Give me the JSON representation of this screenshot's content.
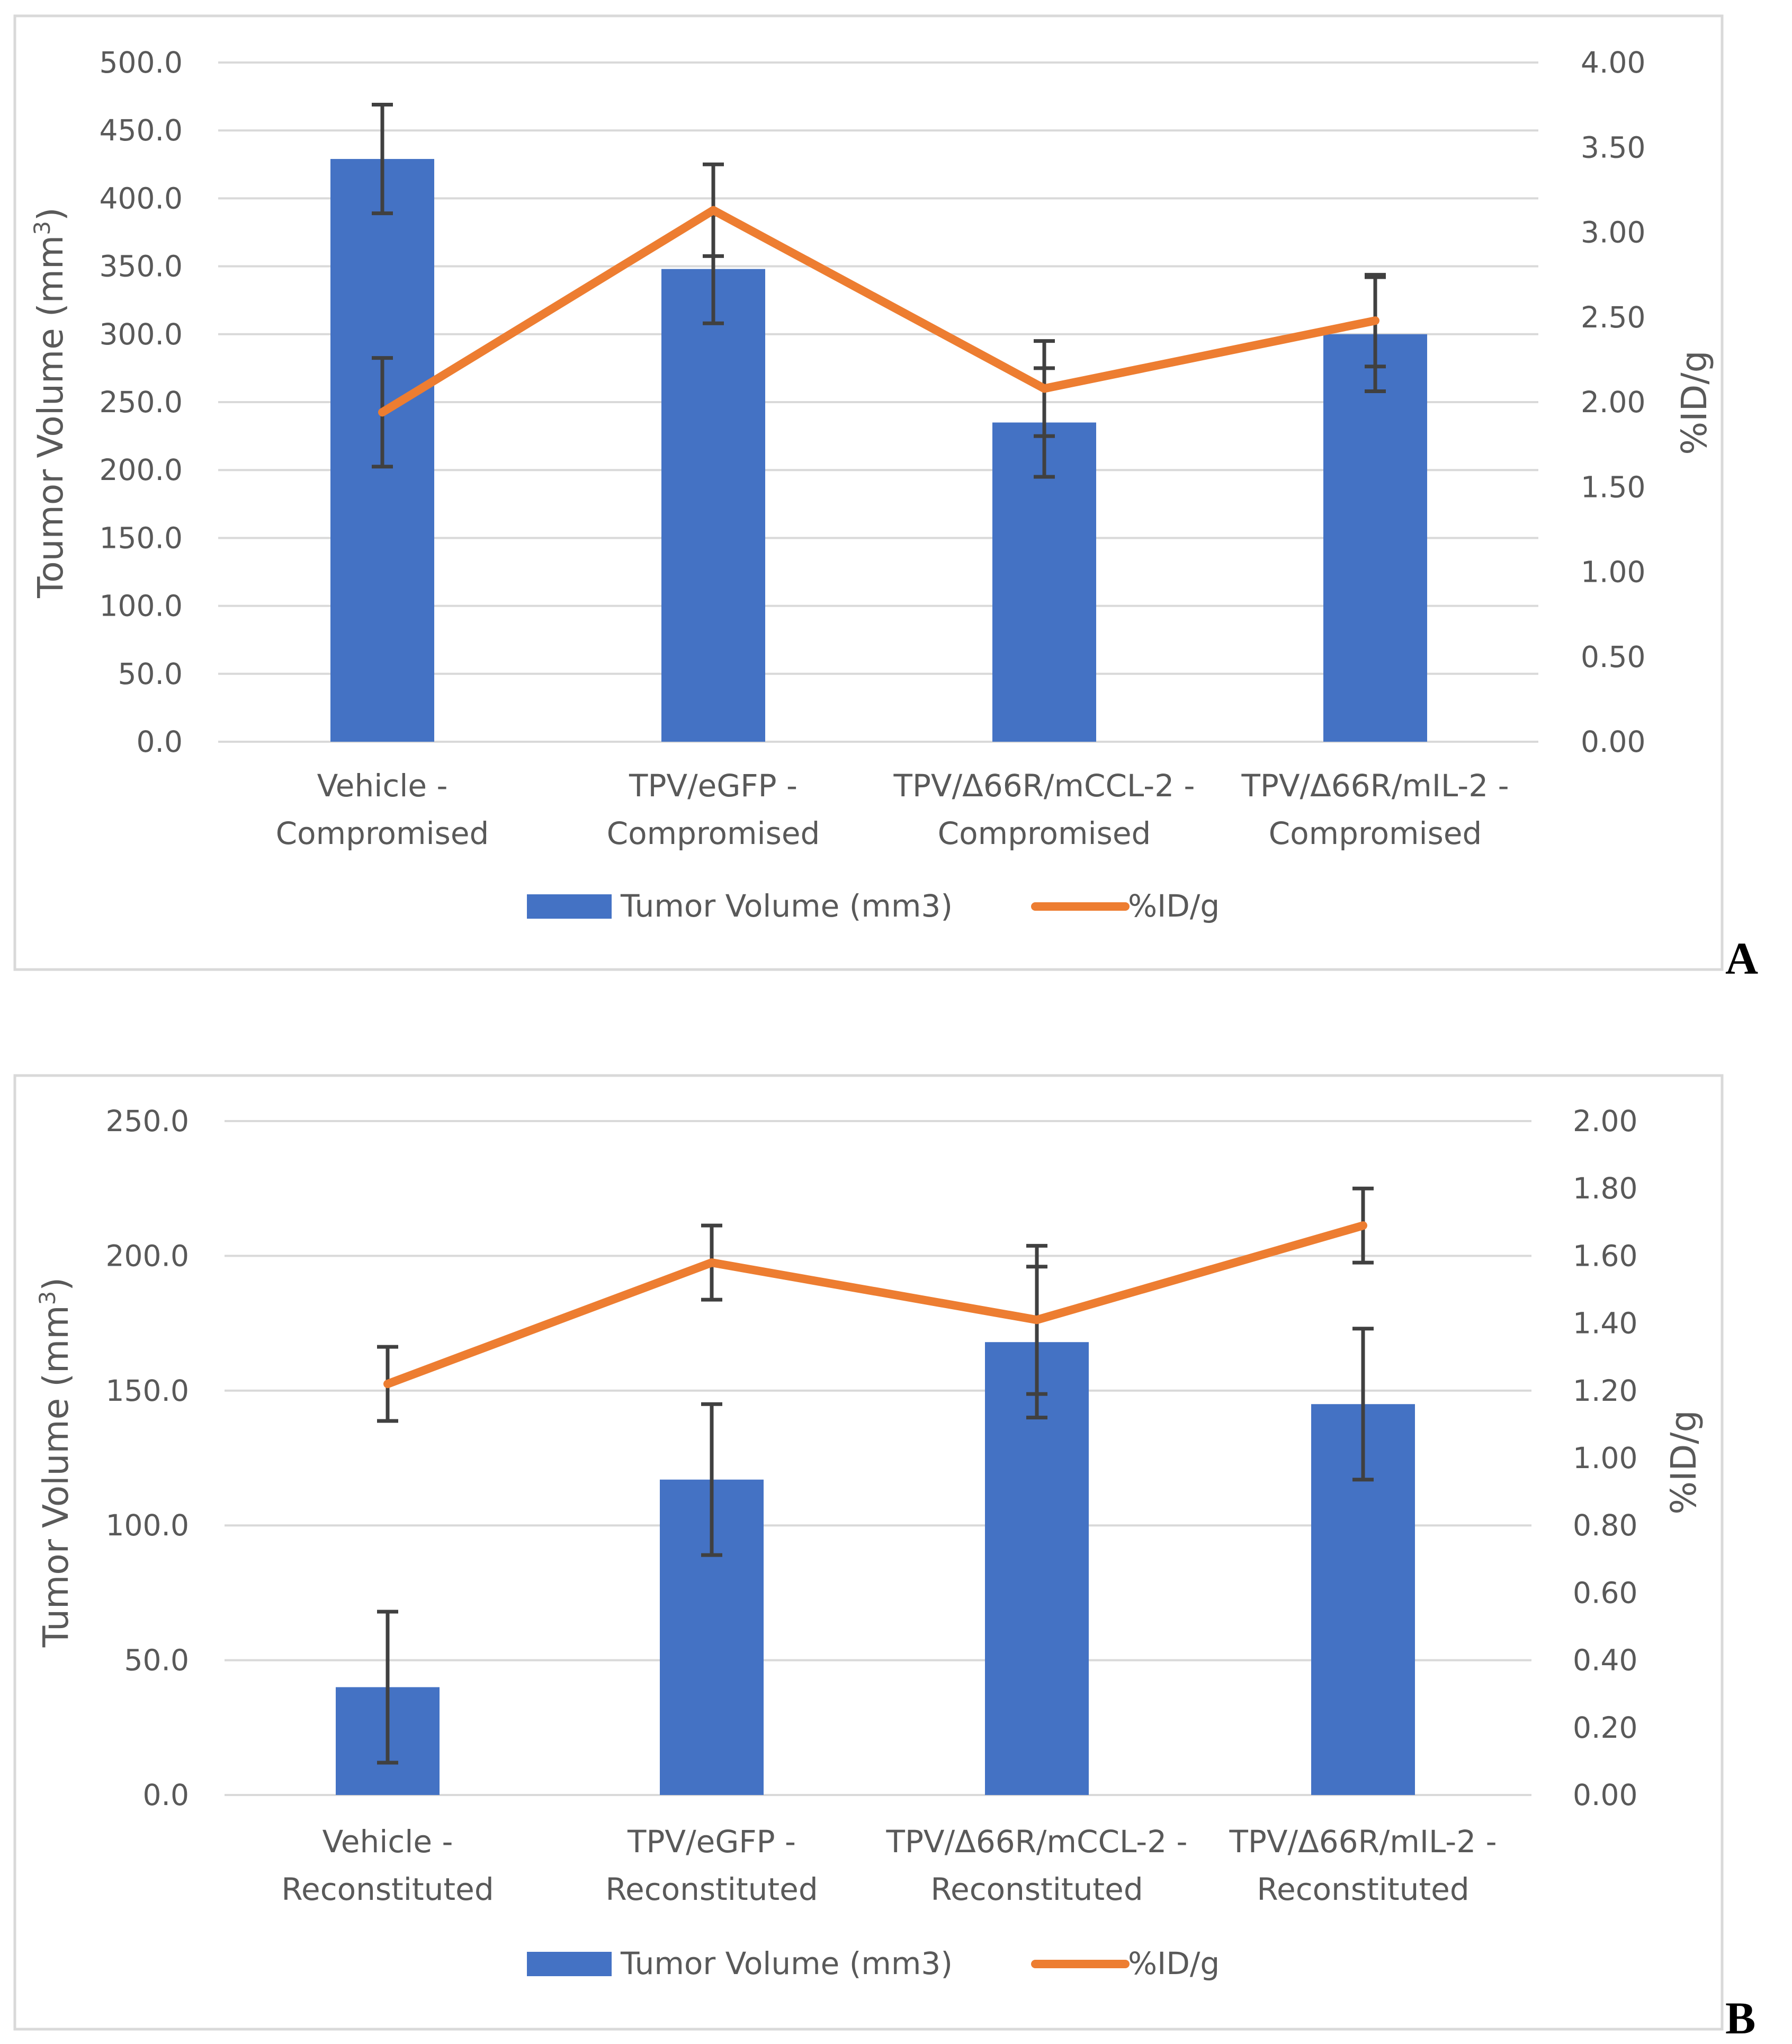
{
  "colors": {
    "bar": "#4472C4",
    "line": "#ED7D31",
    "errbar": "#404040",
    "grid": "#D9D9D9",
    "frame": "#D9D9D9",
    "text": "#595959"
  },
  "chart_data": [
    {
      "type": "bar",
      "panel_label": "A",
      "categories": [
        [
          "Vehicle -",
          "Compromised"
        ],
        [
          "TPV/eGFP -",
          "Compromised"
        ],
        [
          "TPV/Δ66R/mCCL-2 -",
          "Compromised"
        ],
        [
          "TPV/Δ66R/mIL-2 -",
          "Compromised"
        ]
      ],
      "ylabel_main": "Toumor Volume (mm",
      "ylabel_sup": "3",
      "ylabel_close": ")",
      "y2label": "%ID/g",
      "ylim": [
        0,
        500
      ],
      "y2lim": [
        0,
        4
      ],
      "yticks": [
        "0.0",
        "50.0",
        "100.0",
        "150.0",
        "200.0",
        "250.0",
        "300.0",
        "350.0",
        "400.0",
        "450.0",
        "500.0"
      ],
      "y2ticks": [
        "0.00",
        "0.50",
        "1.00",
        "1.50",
        "2.00",
        "2.50",
        "3.00",
        "3.50",
        "4.00"
      ],
      "grid": true,
      "legend_position": "bottom",
      "series": [
        {
          "name": "Tumor Volume (mm3)",
          "kind": "bar",
          "axis": "left",
          "values": [
            429,
            348,
            235,
            300
          ],
          "errors": [
            40,
            40,
            40,
            42
          ]
        },
        {
          "name": "%ID/g",
          "kind": "line",
          "axis": "right",
          "values": [
            1.94,
            3.13,
            2.08,
            2.48
          ],
          "errors": [
            0.32,
            0.27,
            0.28,
            0.27
          ]
        }
      ]
    },
    {
      "type": "bar",
      "panel_label": "B",
      "categories": [
        [
          "Vehicle -",
          "Reconstituted"
        ],
        [
          "TPV/eGFP -",
          "Reconstituted"
        ],
        [
          "TPV/Δ66R/mCCL-2 -",
          "Reconstituted"
        ],
        [
          "TPV/Δ66R/mIL-2 -",
          "Reconstituted"
        ]
      ],
      "ylabel_main": "Tumor Volume (mm",
      "ylabel_sup": "3",
      "ylabel_close": ")",
      "y2label": "%ID/g",
      "ylim": [
        0,
        250
      ],
      "y2lim": [
        0,
        2
      ],
      "yticks": [
        "0.0",
        "50.0",
        "100.0",
        "150.0",
        "200.0",
        "250.0"
      ],
      "y2ticks": [
        "0.00",
        "0.20",
        "0.40",
        "0.60",
        "0.80",
        "1.00",
        "1.20",
        "1.40",
        "1.60",
        "1.80",
        "2.00"
      ],
      "grid": true,
      "legend_position": "bottom",
      "series": [
        {
          "name": "Tumor Volume (mm3)",
          "kind": "bar",
          "axis": "left",
          "values": [
            40,
            117,
            168,
            145
          ],
          "errors": [
            28,
            28,
            28,
            28
          ]
        },
        {
          "name": "%ID/g",
          "kind": "line",
          "axis": "right",
          "values": [
            1.22,
            1.58,
            1.41,
            1.69
          ],
          "errors": [
            0.11,
            0.11,
            0.22,
            0.11
          ]
        }
      ]
    }
  ]
}
